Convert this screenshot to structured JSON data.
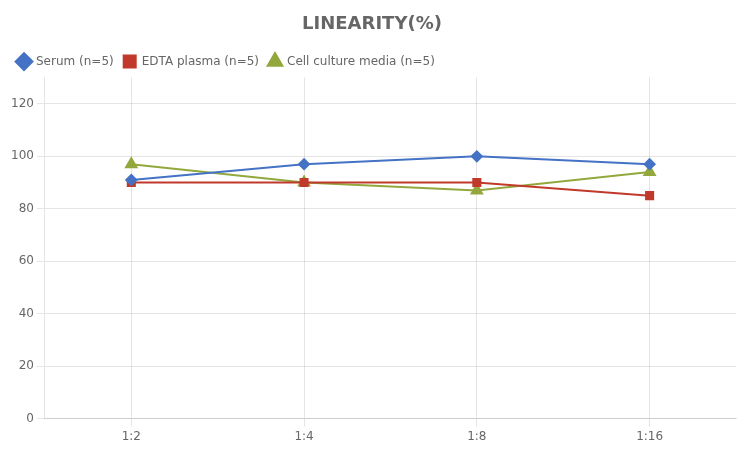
{
  "chart_data": {
    "type": "line",
    "title": "LINEARITY(%)",
    "categories": [
      "1:2",
      "1:4",
      "1:8",
      "1:16"
    ],
    "series": [
      {
        "name": "Serum (n=5)",
        "color": "#4472C4",
        "marker": "diamond",
        "values": [
          91,
          97,
          100,
          97
        ]
      },
      {
        "name": "EDTA plasma (n=5)",
        "color": "#C0392B",
        "marker": "square",
        "values": [
          90,
          90,
          90,
          85
        ]
      },
      {
        "name": "Cell culture media (n=5)",
        "color": "#92A83C",
        "marker": "triangle",
        "values": [
          97,
          90,
          87,
          94
        ]
      }
    ],
    "ylim": [
      0,
      130
    ],
    "yticks": [
      0,
      20,
      40,
      60,
      80,
      100,
      120
    ],
    "grid": true,
    "legend": "upper left"
  }
}
